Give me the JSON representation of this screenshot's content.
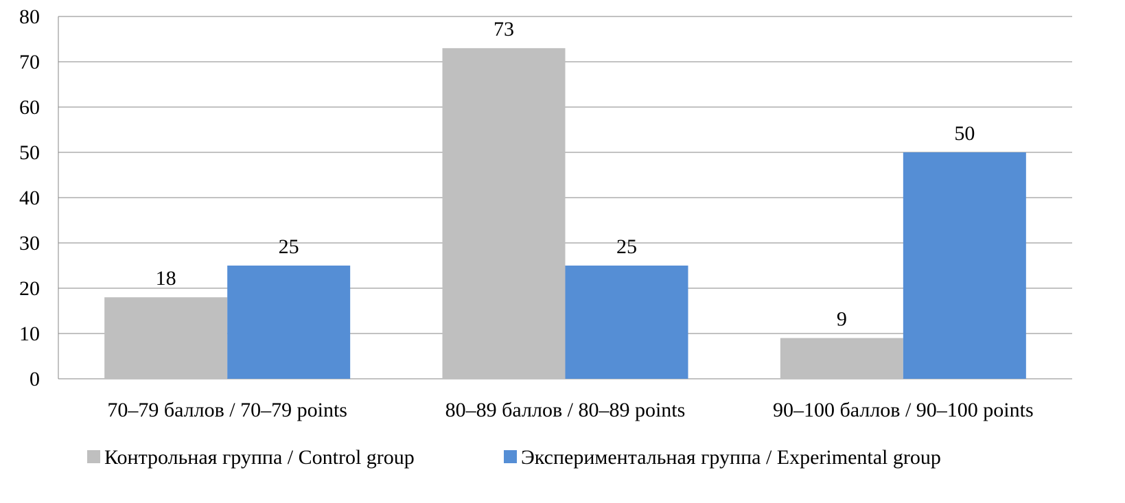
{
  "chart_data": {
    "type": "bar",
    "title": "",
    "xlabel": "",
    "ylabel": "",
    "ylim": [
      0,
      80
    ],
    "yticks": [
      0,
      10,
      20,
      30,
      40,
      50,
      60,
      70,
      80
    ],
    "grid": true,
    "legend_position": "bottom",
    "categories": [
      "70–79 баллов / 70–79 points",
      "80–89 баллов / 80–89 points",
      "90–100 баллов / 90–100 points"
    ],
    "series": [
      {
        "name": "Контрольная группа / Control group",
        "color": "#BFBFBF",
        "values": [
          18,
          73,
          9
        ]
      },
      {
        "name": "Экспериментальная группа / Experimental group",
        "color": "#558ED5",
        "values": [
          25,
          25,
          50
        ]
      }
    ]
  }
}
